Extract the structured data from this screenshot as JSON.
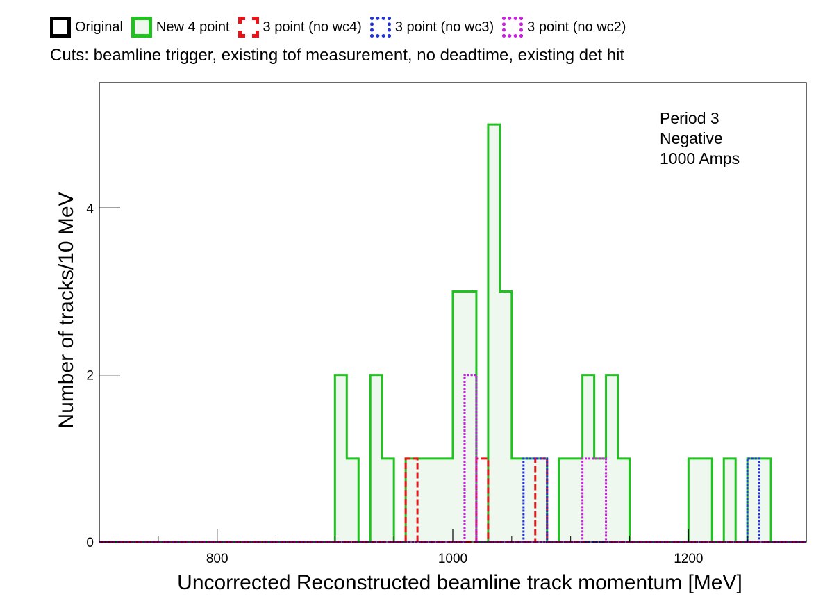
{
  "legend": [
    {
      "label": "Original",
      "color": "#000000",
      "style": "solid",
      "fill": "#ffffff"
    },
    {
      "label": "New 4 point",
      "color": "#1fc21f",
      "style": "solid",
      "fill": "#eef8ee"
    },
    {
      "label": "3 point (no wc4)",
      "color": "#e8151b",
      "style": "dashed",
      "fill": "#ffffff"
    },
    {
      "label": "3 point (no wc3)",
      "color": "#2433d6",
      "style": "dotted",
      "fill": "#ffffff"
    },
    {
      "label": "3 point (no wc2)",
      "color": "#cc1ee0",
      "style": "dotted",
      "fill": "#ffffff"
    }
  ],
  "cuts_text": "Cuts: beamline trigger, existing tof measurement, no deadtime, existing det hit",
  "chart_data": {
    "type": "histogram",
    "title": "",
    "xlabel": "Uncorrected Reconstructed beamline track momentum [MeV]",
    "ylabel": "Number of tracks/10 MeV",
    "xlim": [
      700,
      1300
    ],
    "ylim": [
      0,
      5.5
    ],
    "bin_width": 10,
    "x_ticks": [
      800,
      1000,
      1200
    ],
    "y_ticks": [
      0,
      2,
      4
    ],
    "annotations": [
      "Period 3",
      "Negative",
      "1000 Amps"
    ],
    "series": [
      {
        "name": "New 4 point",
        "color": "#1fc21f",
        "style": "solid",
        "fill": "#eef8ee",
        "bins": [
          [
            900,
            2
          ],
          [
            910,
            1
          ],
          [
            930,
            2
          ],
          [
            940,
            1
          ],
          [
            960,
            1
          ],
          [
            970,
            1
          ],
          [
            980,
            1
          ],
          [
            990,
            1
          ],
          [
            1000,
            3
          ],
          [
            1010,
            3
          ],
          [
            1030,
            5
          ],
          [
            1040,
            3
          ],
          [
            1050,
            1
          ],
          [
            1060,
            1
          ],
          [
            1070,
            1
          ],
          [
            1090,
            1
          ],
          [
            1100,
            1
          ],
          [
            1110,
            2
          ],
          [
            1120,
            1
          ],
          [
            1130,
            2
          ],
          [
            1140,
            1
          ],
          [
            1200,
            1
          ],
          [
            1210,
            1
          ],
          [
            1230,
            1
          ],
          [
            1250,
            1
          ],
          [
            1260,
            1
          ]
        ]
      },
      {
        "name": "3 point (no wc4)",
        "color": "#e8151b",
        "style": "dashed",
        "fill": "none",
        "bins": [
          [
            960,
            1
          ],
          [
            1020,
            1
          ],
          [
            1070,
            1
          ]
        ]
      },
      {
        "name": "3 point (no wc3)",
        "color": "#2433d6",
        "style": "dotted",
        "fill": "none",
        "bins": [
          [
            1010,
            2
          ],
          [
            1060,
            1
          ],
          [
            1070,
            1
          ],
          [
            1250,
            1
          ]
        ]
      },
      {
        "name": "3 point (no wc2)",
        "color": "#cc1ee0",
        "style": "dotted",
        "fill": "none",
        "bins": [
          [
            1010,
            2
          ],
          [
            1110,
            1
          ],
          [
            1120,
            1
          ]
        ]
      }
    ]
  }
}
